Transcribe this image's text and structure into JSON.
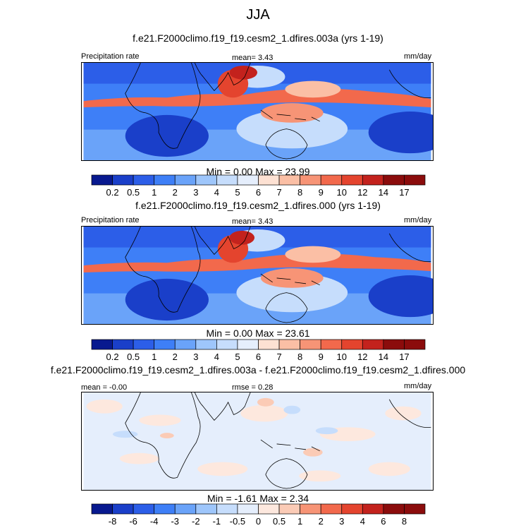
{
  "figure": {
    "title": "JJA"
  },
  "colors": {
    "seq": [
      "#08198f",
      "#1a3fc9",
      "#2c5ee8",
      "#3e7ff7",
      "#6aa3f9",
      "#9ec6fb",
      "#c6ddfc",
      "#e5eefc",
      "#fde1d3",
      "#fbbfa5",
      "#f79476",
      "#f2694c",
      "#e4442e",
      "#c3221d",
      "#8b0c0c"
    ],
    "div": [
      "#08198f",
      "#1a3fc9",
      "#2c5ee8",
      "#3e7ff7",
      "#6aa3f9",
      "#9ec6fb",
      "#c6ddfc",
      "#e5eefc",
      "#fde8de",
      "#fbcbb6",
      "#f79476",
      "#f2694c",
      "#e4442e",
      "#c3221d",
      "#8b0c0c"
    ]
  },
  "chart_data": [
    {
      "type": "heatmap",
      "title": "f.e21.F2000climo.f19_f19.cesm2_1.dfires.003a (yrs 1-19)",
      "left_label": "Precipitation rate",
      "center_label": "mean=   3.43",
      "units": "mm/day",
      "stats": "Min =   0.00 Max =  23.99",
      "colorbar": {
        "labels": [
          "0.2",
          "0.5",
          "1",
          "2",
          "3",
          "4",
          "5",
          "6",
          "7",
          "8",
          "9",
          "10",
          "12",
          "14",
          "17"
        ]
      }
    },
    {
      "type": "heatmap",
      "title": "f.e21.F2000climo.f19_f19.cesm2_1.dfires.000 (yrs 1-19)",
      "left_label": "Precipitation rate",
      "center_label": "mean=   3.43",
      "units": "mm/day",
      "stats": "Min =   0.00 Max =  23.61",
      "colorbar": {
        "labels": [
          "0.2",
          "0.5",
          "1",
          "2",
          "3",
          "4",
          "5",
          "6",
          "7",
          "8",
          "9",
          "10",
          "12",
          "14",
          "17"
        ]
      }
    },
    {
      "type": "heatmap",
      "title": "f.e21.F2000climo.f19_f19.cesm2_1.dfires.003a - f.e21.F2000climo.f19_f19.cesm2_1.dfires.000",
      "left_label": "mean = -0.00",
      "center_label": "rmse =  0.28",
      "units": "mm/day",
      "stats": "Min =  -1.61 Max =   2.34",
      "colorbar": {
        "labels": [
          "-8",
          "-6",
          "-4",
          "-3",
          "-2",
          "-1",
          "-0.5",
          "0",
          "0.5",
          "1",
          "2",
          "3",
          "4",
          "6",
          "8"
        ]
      }
    }
  ]
}
